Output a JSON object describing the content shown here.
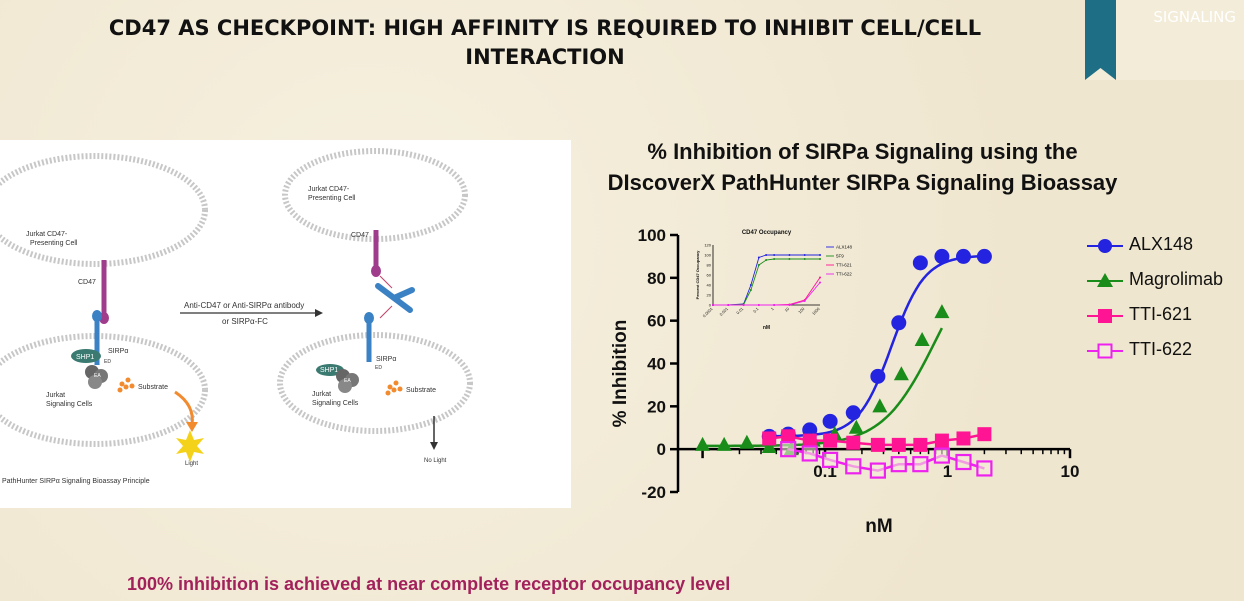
{
  "slide": {
    "title_line1": "CD47 AS CHECKPOINT: HIGH AFFINITY IS REQUIRED TO INHIBIT CELL/CELL",
    "title_line2": "INTERACTION",
    "banner": "SIGNALING",
    "footnote": "100% inhibition is achieved at near complete receptor occupancy level",
    "banner_color": "#1e6f85",
    "footnote_color": "#a3215b"
  },
  "diagram": {
    "left_cell_label": [
      "Jurkat CD47-",
      "Presenting Cell"
    ],
    "left_cd47": "CD47",
    "left_sirpa": "SIRPα",
    "left_shp1": "SHP1",
    "left_ed": "ED",
    "left_ea": "EA",
    "left_substrate": "Substrate",
    "left_signaling": [
      "Jurkat",
      "Signaling Cells"
    ],
    "left_light": "Light",
    "arrow_label_1": "Anti-CD47 or Anti-SIRPα antibody",
    "arrow_label_2": "or SIRPα-FC",
    "right_cell_label": [
      "Jurkat CD47-",
      "Presenting Cell"
    ],
    "right_cd47": "CD47",
    "right_sirpa": "SIRPα",
    "right_shp1": "SHP1",
    "right_ed": "ED",
    "right_ea": "EA",
    "right_substrate": "Substrate",
    "right_signaling": [
      "Jurkat",
      "Signaling Cells"
    ],
    "right_nolight": "No Light",
    "caption": "PathHunter SIRPα Signaling Bioassay Principle"
  },
  "chart_data": [
    {
      "type": "scatter",
      "title_line1": "% Inhibition of SIRPa Signaling using the",
      "title_line2": "DIscoverX PathHunter SIRPa Signaling Bioassay",
      "xlabel": "nM",
      "ylabel": "% Inhibition",
      "x_scale": "log",
      "xlim": [
        0.0063,
        10
      ],
      "ylim": [
        -20,
        100
      ],
      "x_ticks": [
        {
          "v": 0.1,
          "label": "0.1"
        },
        {
          "v": 1,
          "label": "1"
        },
        {
          "v": 10,
          "label": "10"
        }
      ],
      "y_ticks": [
        -20,
        0,
        20,
        40,
        60,
        80,
        100
      ],
      "legend_position": "right",
      "series": [
        {
          "name": "ALX148",
          "color": "#2323e0",
          "marker": "circle",
          "x": [
            0.035,
            0.05,
            0.075,
            0.11,
            0.17,
            0.27,
            0.4,
            0.6,
            0.9,
            1.35,
            2.0
          ],
          "y": [
            6,
            7,
            9,
            13,
            17,
            34,
            59,
            87,
            90,
            90,
            90
          ],
          "curve": {
            "bottom": 6,
            "top": 90.5,
            "ec50": 0.35,
            "hill": 3.2
          }
        },
        {
          "name": "Magrolimab",
          "color": "#1a8c1a",
          "marker": "triangle",
          "x": [
            0.01,
            0.015,
            0.023,
            0.035,
            0.053,
            0.08,
            0.12,
            0.18,
            0.28,
            0.42,
            0.62,
            0.9
          ],
          "y": [
            2,
            2,
            3,
            1,
            0,
            4,
            7,
            10,
            20,
            35,
            51,
            64
          ],
          "curve": {
            "bottom": 1.5,
            "top": 100,
            "ec50": 0.8,
            "hill": 2.0
          }
        },
        {
          "name": "TTI-621",
          "color": "#ff1493",
          "marker": "square-filled",
          "x": [
            0.035,
            0.05,
            0.075,
            0.11,
            0.17,
            0.27,
            0.4,
            0.6,
            0.9,
            1.35,
            2.0
          ],
          "y": [
            5,
            6,
            4,
            4,
            3,
            2,
            2,
            2,
            4,
            5,
            7
          ]
        },
        {
          "name": "TTI-622",
          "color": "#ee22ee",
          "marker": "square-open",
          "x": [
            0.05,
            0.075,
            0.11,
            0.17,
            0.27,
            0.4,
            0.6,
            0.9,
            1.35,
            2.0
          ],
          "y": [
            0,
            -2,
            -5,
            -8,
            -10,
            -7,
            -7,
            -3,
            -6,
            -9
          ]
        }
      ]
    },
    {
      "type": "line",
      "title": "CD47 Occupancy",
      "xlabel": "nM",
      "ylabel": "Percent CD47 Occupancy",
      "x_tick_labels": [
        "0.0001",
        "0.001",
        "0.01",
        "0.1",
        "1",
        "10",
        "100",
        "1000"
      ],
      "y_ticks": [
        0,
        20,
        40,
        60,
        80,
        100,
        120
      ],
      "ylim": [
        0,
        120
      ],
      "series": [
        {
          "name": "ALX148",
          "color": "#2323e0",
          "x": [
            0.0001,
            0.001,
            0.01,
            0.03,
            0.1,
            0.3,
            1,
            10,
            100,
            1000
          ],
          "y": [
            0,
            0,
            2,
            40,
            95,
            100,
            100,
            100,
            100,
            100
          ]
        },
        {
          "name": "5F9",
          "color": "#1a8c1a",
          "x": [
            0.0001,
            0.001,
            0.01,
            0.03,
            0.1,
            0.3,
            1,
            10,
            100,
            1000
          ],
          "y": [
            0,
            0,
            1,
            30,
            80,
            90,
            92,
            92,
            92,
            92
          ]
        },
        {
          "name": "TTI-621",
          "color": "#ff1493",
          "x": [
            0.0001,
            0.001,
            0.01,
            0.1,
            1,
            10,
            100,
            1000
          ],
          "y": [
            0,
            0,
            0,
            0,
            0,
            1,
            10,
            55
          ]
        },
        {
          "name": "TTI-622",
          "color": "#ee22ee",
          "x": [
            0.0001,
            0.001,
            0.01,
            0.1,
            1,
            10,
            100,
            1000
          ],
          "y": [
            0,
            0,
            0,
            0,
            0,
            0,
            8,
            45
          ]
        }
      ]
    }
  ]
}
